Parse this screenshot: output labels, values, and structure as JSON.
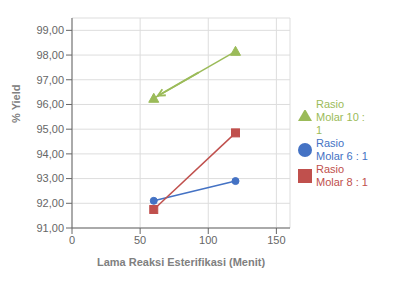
{
  "chart_data": {
    "type": "line",
    "xlabel": "Lama Reaksi Esterifikasi (Menit)",
    "ylabel": "% Yield",
    "series": [
      {
        "name": "Rasio\nMolar 6 : 1",
        "color": "#4472C4",
        "marker": "circle",
        "x": [
          60,
          120
        ],
        "values": [
          92.1,
          92.9
        ]
      },
      {
        "name": "Rasio\nMolar 8 : 1",
        "color": "#C0504D",
        "marker": "square",
        "x": [
          60,
          120
        ],
        "values": [
          91.75,
          94.85
        ]
      },
      {
        "name": "Rasio\nMolar 10 :\n1",
        "color": "#9BBB59",
        "marker": "triangle",
        "x": [
          60,
          120
        ],
        "values": [
          96.25,
          98.15
        ]
      }
    ],
    "xlim": [
      0,
      160
    ],
    "xticks": [
      0,
      50,
      100,
      150
    ],
    "ylim": [
      91.0,
      99.5
    ],
    "yticks": [
      {
        "value": 91.0,
        "label": "91,00"
      },
      {
        "value": 92.0,
        "label": "92,00"
      },
      {
        "value": 93.0,
        "label": "93,00"
      },
      {
        "value": 94.0,
        "label": "94,00"
      },
      {
        "value": 95.0,
        "label": "95,00"
      },
      {
        "value": 96.0,
        "label": "96,00"
      },
      {
        "value": 97.0,
        "label": "97,00"
      },
      {
        "value": 98.0,
        "label": "98,00"
      },
      {
        "value": 99.0,
        "label": "99,00"
      }
    ],
    "grid": true,
    "legend": "right",
    "annotations": [
      {
        "type": "arrow",
        "x": [
          93,
          63
        ],
        "y": [
          97.3,
          96.35
        ],
        "color": "#9BBB59"
      }
    ]
  }
}
